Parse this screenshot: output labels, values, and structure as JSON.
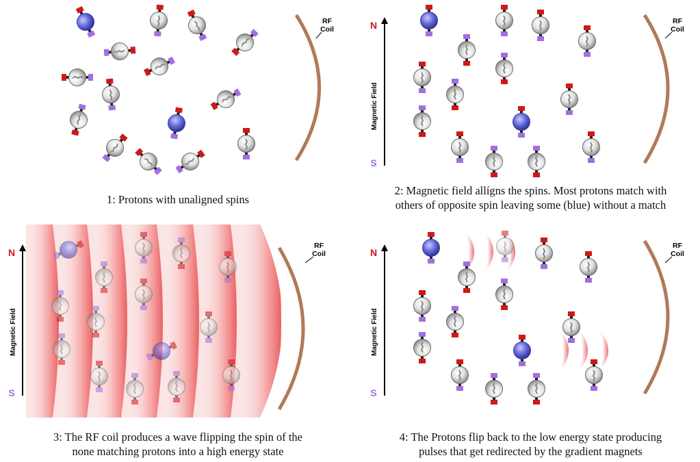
{
  "panels": [
    {
      "id": 1,
      "caption_lines": [
        "1: Protons with unaligned spins"
      ],
      "coil_label": [
        "RF",
        "Coil"
      ],
      "has_field": false,
      "has_wave": false
    },
    {
      "id": 2,
      "caption_lines": [
        "2: Magnetic field allígns the spins. Most protons match with",
        "others of opposite spin leaving some (blue) without a match"
      ],
      "coil_label": [
        "RF",
        "Coil"
      ],
      "has_field": true,
      "has_wave": false,
      "field": {
        "north": "N",
        "south": "S",
        "label": "Magnetic Field"
      }
    },
    {
      "id": 3,
      "caption_lines": [
        "3: The RF coil produces a wave  flipping the spin of the",
        "none matching protons into a high energy state"
      ],
      "coil_label": [
        "RF",
        "Coil"
      ],
      "has_field": true,
      "has_wave": true,
      "field": {
        "north": "N",
        "south": "S",
        "label": "Magnetic Field"
      }
    },
    {
      "id": 4,
      "caption_lines": [
        "4: The Protons flip back to the low energy state producing",
        "pulses that get redirected by the gradient magnets"
      ],
      "coil_label": [
        "RF",
        "Coil"
      ],
      "has_field": true,
      "has_wave": false,
      "field": {
        "north": "N",
        "south": "S",
        "label": "Magnetic Field"
      }
    }
  ],
  "colors": {
    "north": "#d01818",
    "south": "#a070e0",
    "coil": "#b07a5a",
    "proton_blue": "#5a5fd0",
    "proton_gray": "#cfcfcf",
    "wave": "#f08080"
  },
  "legend_meaning": {
    "red_cap": "north pole",
    "purple_cap": "south pole"
  }
}
